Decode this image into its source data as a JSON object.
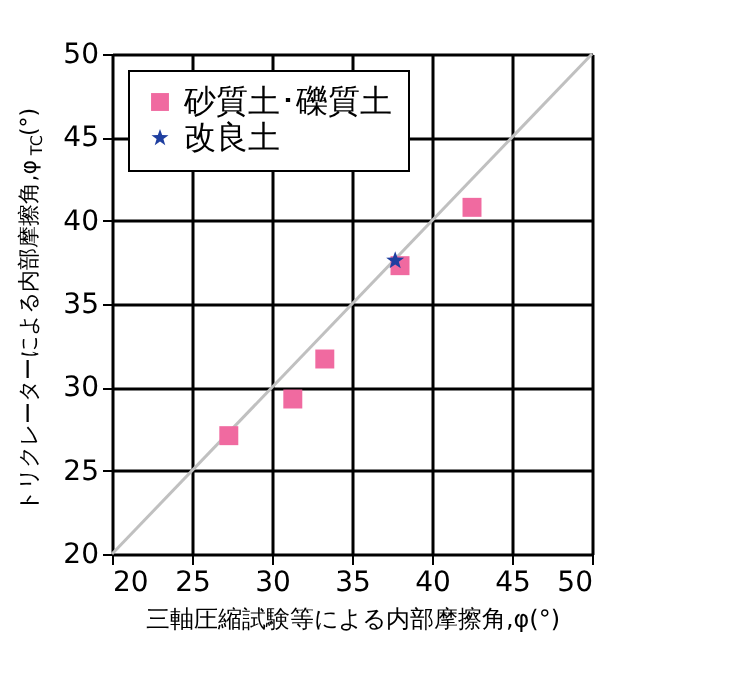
{
  "chart_data": {
    "type": "scatter",
    "xlabel": "三軸圧縮試験等による内部摩擦角,φ(°)",
    "ylabel": "トリクレーターによる内部摩擦角,φ$_{TC}$(°)",
    "xlim": [
      20,
      50
    ],
    "ylim": [
      20,
      50
    ],
    "xticks": [
      20,
      25,
      30,
      35,
      40,
      45,
      50
    ],
    "yticks": [
      20,
      25,
      30,
      35,
      40,
      45,
      50
    ],
    "grid": true,
    "legend": "top left",
    "series": [
      {
        "type": "line",
        "color": "#c0c0c0",
        "x": [
          20,
          50
        ],
        "values": [
          20,
          50
        ],
        "line_style": "solid"
      },
      {
        "name": "砂質土･礫質土",
        "color": "#f06aa0",
        "marker": "square",
        "x": [
          27.3,
          31.3,
          33.3,
          38.0,
          42.5
        ],
        "values": [
          27.1,
          29.3,
          31.7,
          37.3,
          40.8
        ]
      },
      {
        "name": "改良土",
        "color": "#1f3fa0",
        "marker": "star",
        "x": [
          37.7
        ],
        "values": [
          37.6
        ]
      }
    ]
  }
}
